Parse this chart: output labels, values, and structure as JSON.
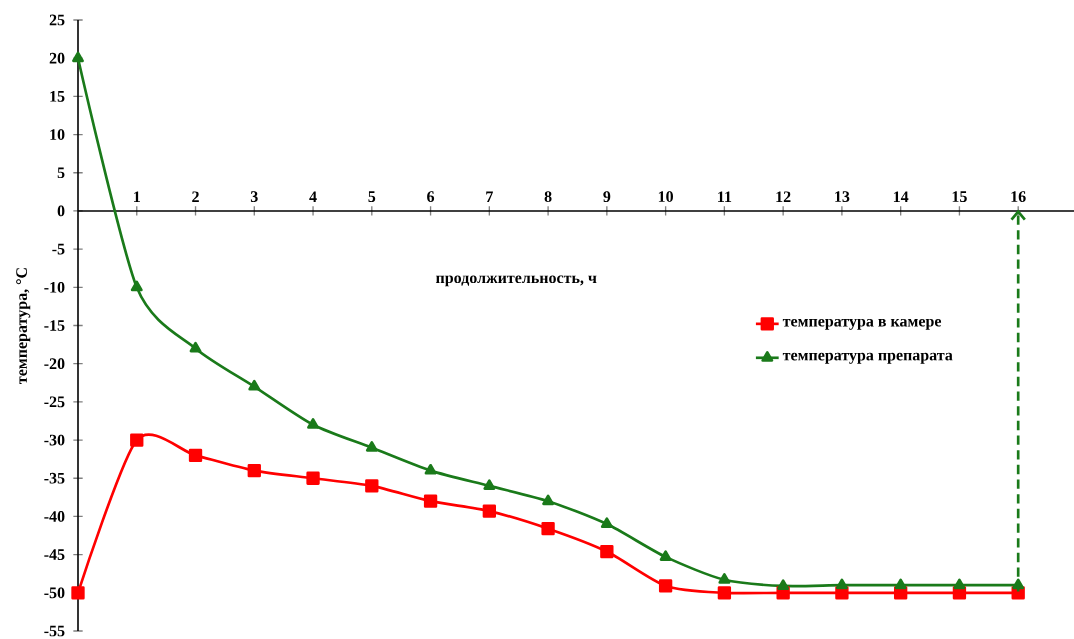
{
  "chart_data": {
    "type": "line",
    "xlabel": "продолжительность, ч",
    "ylabel": "температура, °С",
    "x": [
      0,
      1,
      2,
      3,
      4,
      5,
      6,
      7,
      8,
      9,
      10,
      11,
      12,
      13,
      14,
      15,
      16
    ],
    "series": [
      {
        "name": "температура в камере",
        "color": "#ff0000",
        "marker": "square",
        "values": [
          -50,
          -30,
          -32,
          -34,
          -35,
          -36,
          -38,
          -39.3,
          -41.6,
          -44.6,
          -49.1,
          -50,
          -50,
          -50,
          -50,
          -50,
          -50
        ]
      },
      {
        "name": "температура препарата",
        "color": "#1a7a1a",
        "marker": "triangle",
        "values": [
          20,
          -10,
          -18,
          -23,
          -28,
          -31,
          -34,
          -36,
          -38,
          -41,
          -45.3,
          -48.3,
          -49.1,
          -49,
          -49,
          -49,
          -49
        ]
      }
    ],
    "xlim": [
      0,
      16.95
    ],
    "ylim": [
      -55,
      25
    ],
    "xticks": [
      1,
      2,
      3,
      4,
      5,
      6,
      7,
      8,
      9,
      10,
      11,
      12,
      13,
      14,
      15,
      16
    ],
    "yticks": [
      -55,
      -50,
      -45,
      -40,
      -35,
      -30,
      -25,
      -20,
      -15,
      -10,
      -5,
      0,
      5,
      10,
      15,
      20,
      25
    ],
    "ref_lines": [
      {
        "axis": "x",
        "value": 16,
        "color": "#1a7a1a",
        "line_style": "dashed"
      }
    ],
    "legend": "right",
    "line_style": "solid",
    "grid": false
  }
}
